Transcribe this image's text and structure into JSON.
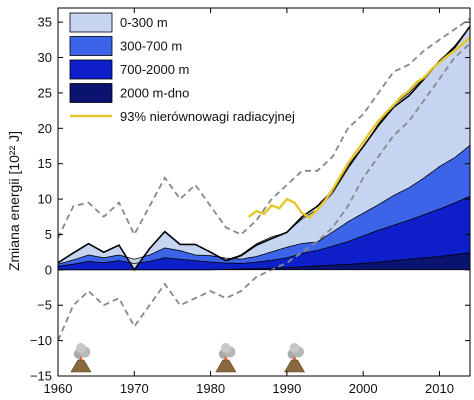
{
  "chart_data": {
    "type": "area",
    "ylabel": "Zmiana energii [10²² J]",
    "xlim": [
      1960,
      2014
    ],
    "ylim": [
      -15,
      37
    ],
    "x_ticks": [
      1960,
      1970,
      1980,
      1990,
      2000,
      2010
    ],
    "y_ticks": [
      -15,
      -10,
      -5,
      0,
      5,
      10,
      15,
      20,
      25,
      30,
      35
    ],
    "x_tick_labels": [
      "1960",
      "1970",
      "1980",
      "1990",
      "2000",
      "2010"
    ],
    "y_tick_labels": [
      "−15",
      "−10",
      "−5",
      "0",
      "5",
      "10",
      "15",
      "20",
      "25",
      "30",
      "35"
    ],
    "legend_position": "top-left",
    "stacking": "cumulative",
    "series": [
      {
        "name": "2000 m-dno",
        "color": "#0a1370",
        "x": [
          1960,
          1970,
          1980,
          1990,
          2000,
          2010,
          2014
        ],
        "values": [
          0,
          0,
          0,
          0.3,
          0.9,
          1.9,
          2.4
        ]
      },
      {
        "name": "700-2000 m",
        "color": "#0c1fc8",
        "x": [
          1960,
          1962,
          1964,
          1966,
          1968,
          1970,
          1972,
          1974,
          1976,
          1978,
          1980,
          1982,
          1984,
          1986,
          1988,
          1990,
          1992,
          1994,
          1996,
          1998,
          2000,
          2002,
          2004,
          2006,
          2008,
          2010,
          2012,
          2014
        ],
        "values": [
          0.5,
          0.8,
          1.2,
          1.0,
          1.3,
          0.9,
          1.2,
          1.7,
          1.5,
          1.3,
          1.1,
          0.9,
          0.8,
          0.9,
          1.1,
          1.4,
          1.9,
          2.2,
          2.7,
          3.2,
          3.9,
          4.5,
          5.0,
          5.5,
          6.1,
          6.7,
          7.3,
          8.0
        ]
      },
      {
        "name": "300-700 m",
        "color": "#3c64e8",
        "x": [
          1960,
          1962,
          1964,
          1966,
          1968,
          1970,
          1972,
          1974,
          1976,
          1978,
          1980,
          1982,
          1984,
          1986,
          1988,
          1990,
          1992,
          1994,
          1996,
          1998,
          2000,
          2002,
          2004,
          2006,
          2008,
          2010,
          2012,
          2014
        ],
        "values": [
          0.3,
          0.6,
          0.9,
          0.7,
          0.8,
          0.6,
          0.9,
          1.4,
          1.2,
          0.8,
          0.9,
          0.7,
          0.6,
          0.8,
          1.2,
          1.5,
          1.4,
          1.2,
          2.0,
          2.8,
          3.2,
          3.6,
          4.2,
          4.6,
          5.2,
          6.0,
          6.4,
          7.2
        ]
      },
      {
        "name": "0-300 m",
        "color": "#c5d4f0",
        "x": [
          1960,
          1962,
          1964,
          1966,
          1968,
          1970,
          1972,
          1974,
          1976,
          1978,
          1980,
          1982,
          1984,
          1986,
          1988,
          1990,
          1992,
          1994,
          1996,
          1998,
          2000,
          2002,
          2004,
          2006,
          2008,
          2010,
          2012,
          2014
        ],
        "values": [
          0.2,
          1.0,
          1.6,
          0.8,
          1.4,
          -1.5,
          0.9,
          2.3,
          0.9,
          1.5,
          0.5,
          -0.3,
          0.6,
          1.8,
          2.1,
          2.1,
          3.5,
          4.6,
          5.5,
          7.5,
          9.4,
          11.4,
          12.8,
          13.4,
          14.2,
          14.9,
          15.8,
          16.8
        ]
      }
    ],
    "total": {
      "x": [
        1960,
        1962,
        1964,
        1966,
        1968,
        1970,
        1972,
        1974,
        1976,
        1978,
        1980,
        1982,
        1984,
        1986,
        1988,
        1990,
        1992,
        1994,
        1996,
        1998,
        2000,
        2002,
        2004,
        2006,
        2008,
        2010,
        2012,
        2014
      ],
      "values": [
        1.0,
        2.4,
        3.7,
        2.5,
        3.5,
        0.0,
        3.0,
        5.4,
        3.6,
        3.6,
        2.5,
        1.3,
        2.0,
        3.5,
        4.4,
        5.3,
        7.5,
        9.0,
        11.2,
        14.6,
        17.4,
        20.4,
        23.0,
        24.6,
        27.0,
        29.5,
        31.4,
        34.4
      ]
    },
    "confidence_band": {
      "x": [
        1960,
        1962,
        1964,
        1966,
        1968,
        1970,
        1972,
        1974,
        1976,
        1978,
        1980,
        1982,
        1984,
        1986,
        1988,
        1990,
        1992,
        1994,
        1996,
        1998,
        2000,
        2002,
        2004,
        2006,
        2008,
        2010,
        2012,
        2014
      ],
      "upper": [
        4.5,
        9.0,
        9.5,
        7.5,
        9.5,
        5.0,
        9.0,
        13.0,
        10.0,
        12.0,
        9.0,
        6.0,
        5.0,
        7.0,
        10.0,
        12.0,
        14.0,
        14.0,
        16.0,
        20.0,
        22.0,
        25.0,
        28.0,
        29.0,
        31.0,
        32.5,
        34.0,
        35.5
      ],
      "lower": [
        -10.0,
        -5.0,
        -3.0,
        -5.0,
        -4.0,
        -8.0,
        -5.0,
        -2.0,
        -5.0,
        -4.0,
        -3.0,
        -4.0,
        -3.0,
        -1.0,
        0.0,
        1.0,
        2.5,
        4.0,
        6.0,
        9.0,
        13.0,
        16.0,
        19.0,
        21.0,
        24.0,
        27.0,
        30.0,
        32.0
      ]
    },
    "radiative_imbalance": {
      "name": "93% nierównowagi radiacyjnej",
      "color": "#e6c62a",
      "x": [
        1985,
        1986,
        1987,
        1988,
        1989,
        1990,
        1991,
        1992,
        1993,
        1994,
        1995,
        1996,
        1997,
        1998,
        1999,
        2000,
        2001,
        2002,
        2003,
        2004,
        2005,
        2006,
        2007,
        2008,
        2009,
        2010,
        2011,
        2012,
        2013,
        2014
      ],
      "values": [
        7.5,
        8.3,
        7.9,
        9.1,
        8.7,
        10.0,
        9.5,
        8.0,
        7.4,
        8.5,
        9.8,
        11.4,
        13.2,
        15.0,
        16.6,
        18.0,
        19.6,
        21.0,
        22.2,
        23.3,
        24.5,
        25.3,
        26.5,
        27.2,
        28.4,
        29.3,
        30.2,
        31.0,
        31.9,
        32.8
      ]
    },
    "volcano_years": [
      1963,
      1982,
      1991
    ]
  }
}
